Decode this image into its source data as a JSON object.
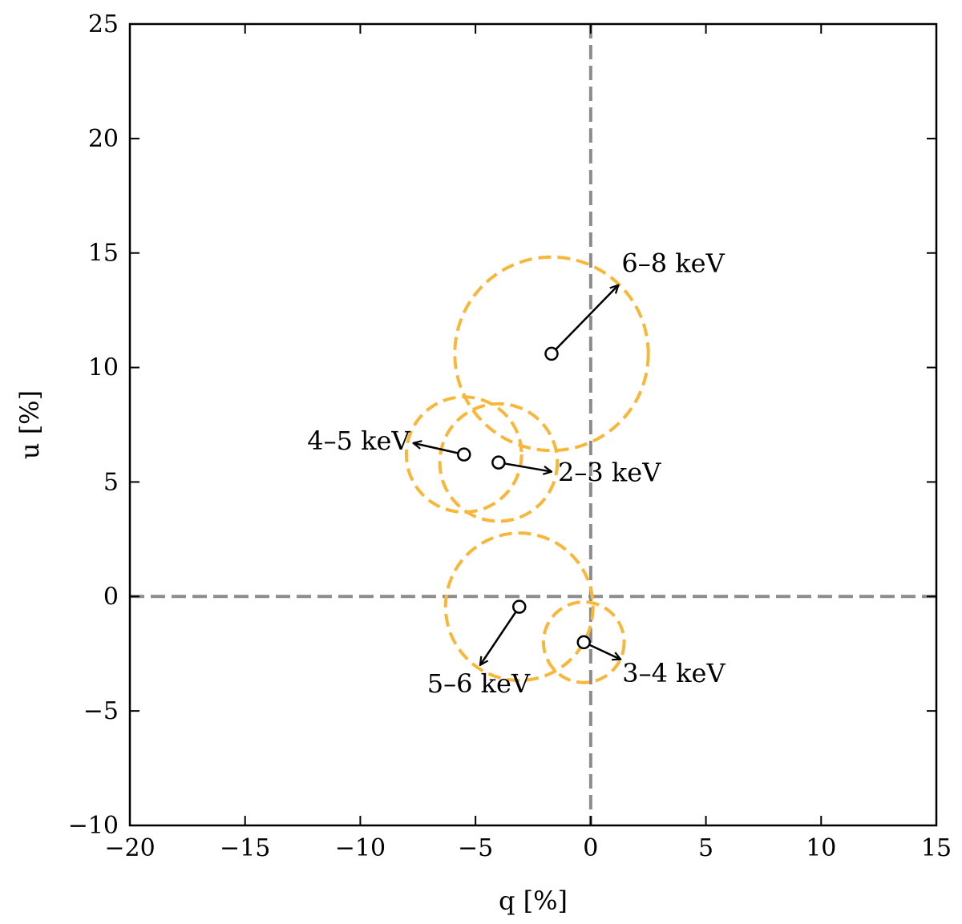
{
  "chart_data": {
    "type": "scatter",
    "xlabel": "q [%]",
    "ylabel": "u [%]",
    "xlim": [
      -20,
      15
    ],
    "ylim": [
      -10,
      25
    ],
    "xticks": [
      -20,
      -15,
      -10,
      -5,
      0,
      5,
      10,
      15
    ],
    "yticks": [
      -10,
      -5,
      0,
      5,
      10,
      15,
      20,
      25
    ],
    "xtick_labels": [
      "−20",
      "−15",
      "−10",
      "−5",
      "0",
      "5",
      "10",
      "15"
    ],
    "ytick_labels": [
      "−10",
      "−5",
      "0",
      "5",
      "10",
      "15",
      "20",
      "25"
    ],
    "zero_lines": true,
    "zero_line_color": "#8c8c8c",
    "circle_color": "#f8b73a",
    "grid": false,
    "points": [
      {
        "label": "2–3 keV",
        "q": -4.0,
        "u": 5.85,
        "radius": 2.55,
        "arrow_to": [
          -1.7,
          5.45
        ]
      },
      {
        "label": "3–4 keV",
        "q": -0.3,
        "u": -2.0,
        "radius": 1.75,
        "arrow_to": [
          1.3,
          -2.75
        ]
      },
      {
        "label": "4–5 keV",
        "q": -5.5,
        "u": 6.2,
        "radius": 2.5,
        "arrow_to": [
          -7.7,
          6.7
        ]
      },
      {
        "label": "5–6 keV",
        "q": -3.1,
        "u": -0.45,
        "radius": 3.2,
        "arrow_to": [
          -4.8,
          -3.0
        ]
      },
      {
        "label": "6–8 keV",
        "q": -1.7,
        "u": 10.6,
        "radius": 4.2,
        "arrow_to": [
          1.2,
          13.6
        ]
      }
    ]
  }
}
